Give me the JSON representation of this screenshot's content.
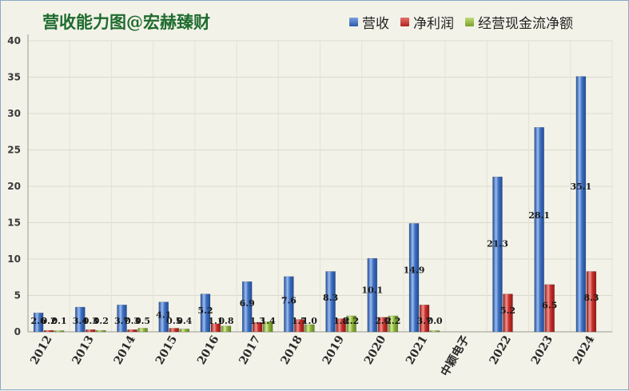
{
  "chart_data": {
    "type": "bar",
    "title": "营收能力图@宏赫臻财",
    "categories": [
      "2012",
      "2013",
      "2014",
      "2015",
      "2016",
      "2017",
      "2018",
      "2019",
      "2020",
      "2021",
      "中颖电子",
      "2022",
      "2023",
      "2024"
    ],
    "ylim": [
      0,
      40
    ],
    "yticks": [
      0,
      5,
      10,
      15,
      20,
      25,
      30,
      35,
      40
    ],
    "grid": true,
    "legend_position": "top-right",
    "series": [
      {
        "name": "营收",
        "color": "#3f6fbf",
        "values": [
          2.6,
          3.4,
          3.7,
          4.1,
          5.2,
          6.9,
          7.6,
          8.3,
          10.1,
          14.9,
          null,
          21.3,
          28.1,
          35.1
        ],
        "labels": [
          "2.6",
          "3.4",
          "3.7",
          "4.1",
          "5.2",
          "6.9",
          "7.6",
          "8.3",
          "10.1",
          "14.9",
          "",
          "21.3",
          "28.1",
          "35.1"
        ]
      },
      {
        "name": "净利润",
        "color": "#c8302c",
        "values": [
          0.2,
          0.3,
          0.3,
          0.5,
          1.1,
          1.3,
          1.7,
          1.8,
          2.0,
          3.7,
          null,
          5.2,
          6.5,
          8.3
        ],
        "labels": [
          "0.2",
          "0.3",
          "0.3",
          "0.5",
          "1.1",
          "1.3",
          "1.7",
          "1.8",
          "2.0",
          "3.7",
          "",
          "5.2",
          "6.5",
          "8.3"
        ]
      },
      {
        "name": "经营现金流净额",
        "color": "#8db33a",
        "values": [
          0.1,
          0.2,
          0.5,
          0.4,
          0.8,
          1.4,
          1.0,
          2.2,
          2.2,
          0.0,
          null,
          null,
          null,
          null
        ],
        "labels": [
          "0.1",
          "0.2",
          "0.5",
          "0.4",
          "0.8",
          "1.4",
          "1.0",
          "2.2",
          "2.2",
          "0.0",
          "",
          "",
          "",
          ""
        ]
      }
    ]
  }
}
